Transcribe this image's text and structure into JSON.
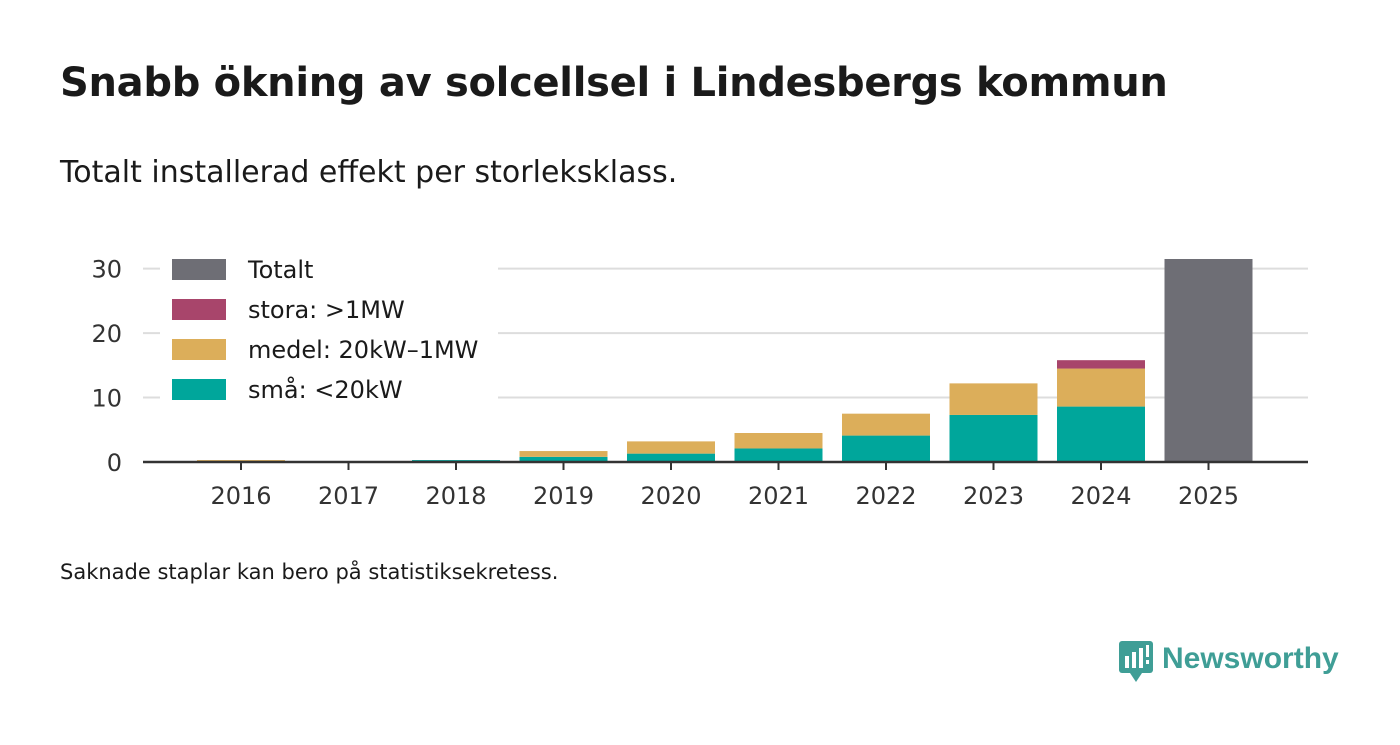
{
  "header": {
    "title": "Snabb ökning av solcellsel i Lindesbergs kommun",
    "subtitle": "Totalt installerad effekt per storleksklass."
  },
  "footer": {
    "note": "Saknade staplar kan bero på statistiksekretess.",
    "brand": "Newsworthy"
  },
  "colors": {
    "totalt": "#6e6e75",
    "stora": "#a8456b",
    "medel": "#dcae5a",
    "sma": "#00a69b",
    "grid": "#dddddd",
    "axis": "#333333",
    "brand": "#3f9e96"
  },
  "chart_data": {
    "type": "bar",
    "stacked": true,
    "categories": [
      "2016",
      "2017",
      "2018",
      "2019",
      "2020",
      "2021",
      "2022",
      "2023",
      "2024",
      "2025"
    ],
    "series": [
      {
        "key": "sma",
        "name": "små: <20kW",
        "values": [
          0.1,
          0,
          0.3,
          0.8,
          1.3,
          2.1,
          4.1,
          7.3,
          8.6,
          0
        ]
      },
      {
        "key": "medel",
        "name": "medel: 20kW–1MW",
        "values": [
          0.2,
          0,
          0,
          0.9,
          1.9,
          2.4,
          3.4,
          4.9,
          5.9,
          0
        ]
      },
      {
        "key": "stora",
        "name": "stora: >1MW",
        "values": [
          0,
          0,
          0,
          0,
          0,
          0,
          0,
          0,
          1.3,
          0
        ]
      },
      {
        "key": "totalt",
        "name": "Totalt",
        "values": [
          0,
          0,
          0,
          0,
          0,
          0,
          0,
          0,
          0,
          31.5
        ]
      }
    ],
    "legend_order": [
      "totalt",
      "stora",
      "medel",
      "sma"
    ],
    "ylim": [
      0,
      31.5
    ],
    "yticks": [
      0,
      10,
      20,
      30
    ],
    "grid": true,
    "legend_position": "top-left",
    "xlabel": "",
    "ylabel": ""
  }
}
